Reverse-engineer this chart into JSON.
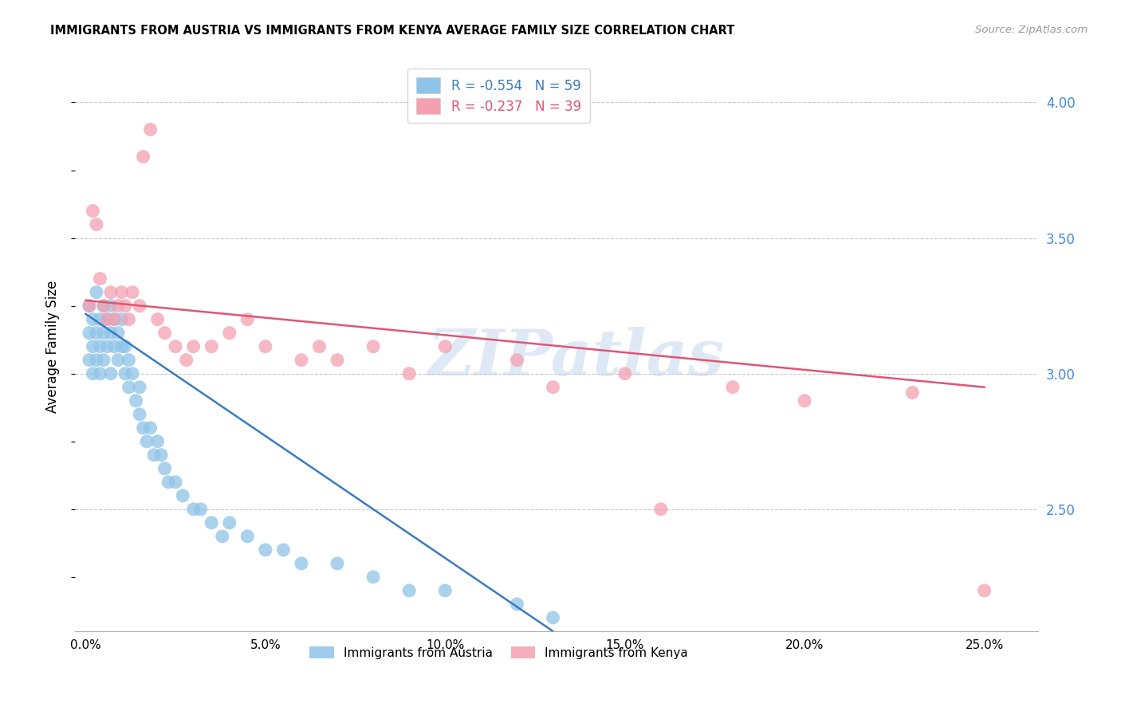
{
  "title": "IMMIGRANTS FROM AUSTRIA VS IMMIGRANTS FROM KENYA AVERAGE FAMILY SIZE CORRELATION CHART",
  "source": "Source: ZipAtlas.com",
  "ylabel": "Average Family Size",
  "xlabel_ticks": [
    "0.0%",
    "5.0%",
    "10.0%",
    "15.0%",
    "20.0%",
    "25.0%"
  ],
  "xlabel_vals": [
    0.0,
    0.05,
    0.1,
    0.15,
    0.2,
    0.25
  ],
  "yticks": [
    2.5,
    3.0,
    3.5,
    4.0
  ],
  "ylim": [
    2.05,
    4.15
  ],
  "xlim": [
    -0.003,
    0.265
  ],
  "austria_R": -0.554,
  "austria_N": 59,
  "kenya_R": -0.237,
  "kenya_N": 39,
  "austria_color": "#8ec4e8",
  "kenya_color": "#f4a0b0",
  "austria_line_color": "#3a7bbf",
  "kenya_line_color": "#e05575",
  "austria_x": [
    0.001,
    0.001,
    0.001,
    0.002,
    0.002,
    0.002,
    0.003,
    0.003,
    0.003,
    0.004,
    0.004,
    0.004,
    0.005,
    0.005,
    0.005,
    0.006,
    0.006,
    0.007,
    0.007,
    0.007,
    0.008,
    0.008,
    0.009,
    0.009,
    0.01,
    0.01,
    0.011,
    0.011,
    0.012,
    0.012,
    0.013,
    0.014,
    0.015,
    0.015,
    0.016,
    0.017,
    0.018,
    0.019,
    0.02,
    0.021,
    0.022,
    0.023,
    0.025,
    0.027,
    0.03,
    0.032,
    0.035,
    0.038,
    0.04,
    0.045,
    0.05,
    0.055,
    0.06,
    0.07,
    0.08,
    0.09,
    0.1,
    0.12,
    0.13
  ],
  "austria_y": [
    3.25,
    3.15,
    3.05,
    3.2,
    3.1,
    3.0,
    3.3,
    3.15,
    3.05,
    3.2,
    3.1,
    3.0,
    3.25,
    3.15,
    3.05,
    3.2,
    3.1,
    3.25,
    3.15,
    3.0,
    3.2,
    3.1,
    3.15,
    3.05,
    3.2,
    3.1,
    3.1,
    3.0,
    3.05,
    2.95,
    3.0,
    2.9,
    2.85,
    2.95,
    2.8,
    2.75,
    2.8,
    2.7,
    2.75,
    2.7,
    2.65,
    2.6,
    2.6,
    2.55,
    2.5,
    2.5,
    2.45,
    2.4,
    2.45,
    2.4,
    2.35,
    2.35,
    2.3,
    2.3,
    2.25,
    2.2,
    2.2,
    2.15,
    2.1
  ],
  "kenya_x": [
    0.001,
    0.002,
    0.003,
    0.004,
    0.005,
    0.006,
    0.007,
    0.008,
    0.009,
    0.01,
    0.011,
    0.012,
    0.013,
    0.015,
    0.016,
    0.018,
    0.02,
    0.022,
    0.025,
    0.028,
    0.03,
    0.035,
    0.04,
    0.045,
    0.05,
    0.06,
    0.065,
    0.07,
    0.08,
    0.09,
    0.1,
    0.12,
    0.13,
    0.15,
    0.16,
    0.18,
    0.2,
    0.23,
    0.25
  ],
  "kenya_y": [
    3.25,
    3.6,
    3.55,
    3.35,
    3.25,
    3.2,
    3.3,
    3.2,
    3.25,
    3.3,
    3.25,
    3.2,
    3.3,
    3.25,
    3.8,
    3.9,
    3.2,
    3.15,
    3.1,
    3.05,
    3.1,
    3.1,
    3.15,
    3.2,
    3.1,
    3.05,
    3.1,
    3.05,
    3.1,
    3.0,
    3.1,
    3.05,
    2.95,
    3.0,
    2.5,
    2.95,
    2.9,
    2.93,
    2.2
  ],
  "austria_line_x0": 0.0,
  "austria_line_x1": 0.13,
  "austria_line_y0": 3.22,
  "austria_line_y1": 2.05,
  "kenya_line_x0": 0.0,
  "kenya_line_x1": 0.25,
  "kenya_line_y0": 3.27,
  "kenya_line_y1": 2.95,
  "legend_austria_label": "Immigrants from Austria",
  "legend_kenya_label": "Immigrants from Kenya",
  "watermark": "ZIPatlas",
  "grid_color": "#c8c8c8",
  "background_color": "#ffffff"
}
